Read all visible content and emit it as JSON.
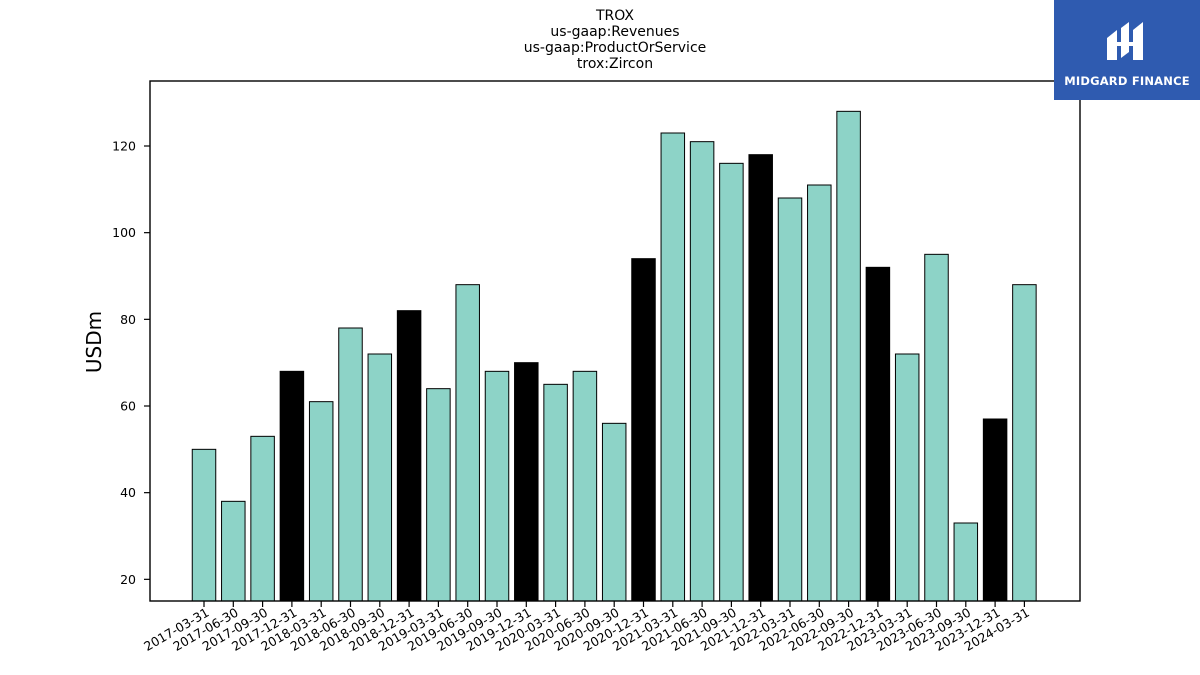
{
  "logo": {
    "text": "MIDGARD FINANCE",
    "color": "#2f5bb0"
  },
  "chart_data": {
    "type": "bar",
    "title_lines": [
      "TROX",
      "us-gaap:Revenues",
      "us-gaap:ProductOrService",
      "trox:Zircon"
    ],
    "xlabel": "",
    "ylabel": "USDm",
    "ylim": [
      15,
      135
    ],
    "yticks": [
      20,
      40,
      60,
      80,
      100,
      120
    ],
    "grid": false,
    "colors": {
      "quarter": "#8dd3c7",
      "year_end": "#000000"
    },
    "categories": [
      "2017-03-31",
      "2017-06-30",
      "2017-09-30",
      "2017-12-31",
      "2018-03-31",
      "2018-06-30",
      "2018-09-30",
      "2018-12-31",
      "2019-03-31",
      "2019-06-30",
      "2019-09-30",
      "2019-12-31",
      "2020-03-31",
      "2020-06-30",
      "2020-09-30",
      "2020-12-31",
      "2021-03-31",
      "2021-06-30",
      "2021-09-30",
      "2021-12-31",
      "2022-03-31",
      "2022-06-30",
      "2022-09-30",
      "2022-12-31",
      "2023-03-31",
      "2023-06-30",
      "2023-09-30",
      "2023-12-31",
      "2024-03-31"
    ],
    "values": [
      50,
      38,
      53,
      68,
      61,
      78,
      72,
      82,
      64,
      88,
      68,
      70,
      65,
      68,
      56,
      94,
      123,
      121,
      116,
      118,
      108,
      111,
      128,
      92,
      72,
      95,
      33,
      57,
      88
    ],
    "year_end": [
      false,
      false,
      false,
      true,
      false,
      false,
      false,
      true,
      false,
      false,
      false,
      true,
      false,
      false,
      false,
      true,
      false,
      false,
      false,
      true,
      false,
      false,
      false,
      true,
      false,
      false,
      false,
      true,
      false
    ]
  }
}
